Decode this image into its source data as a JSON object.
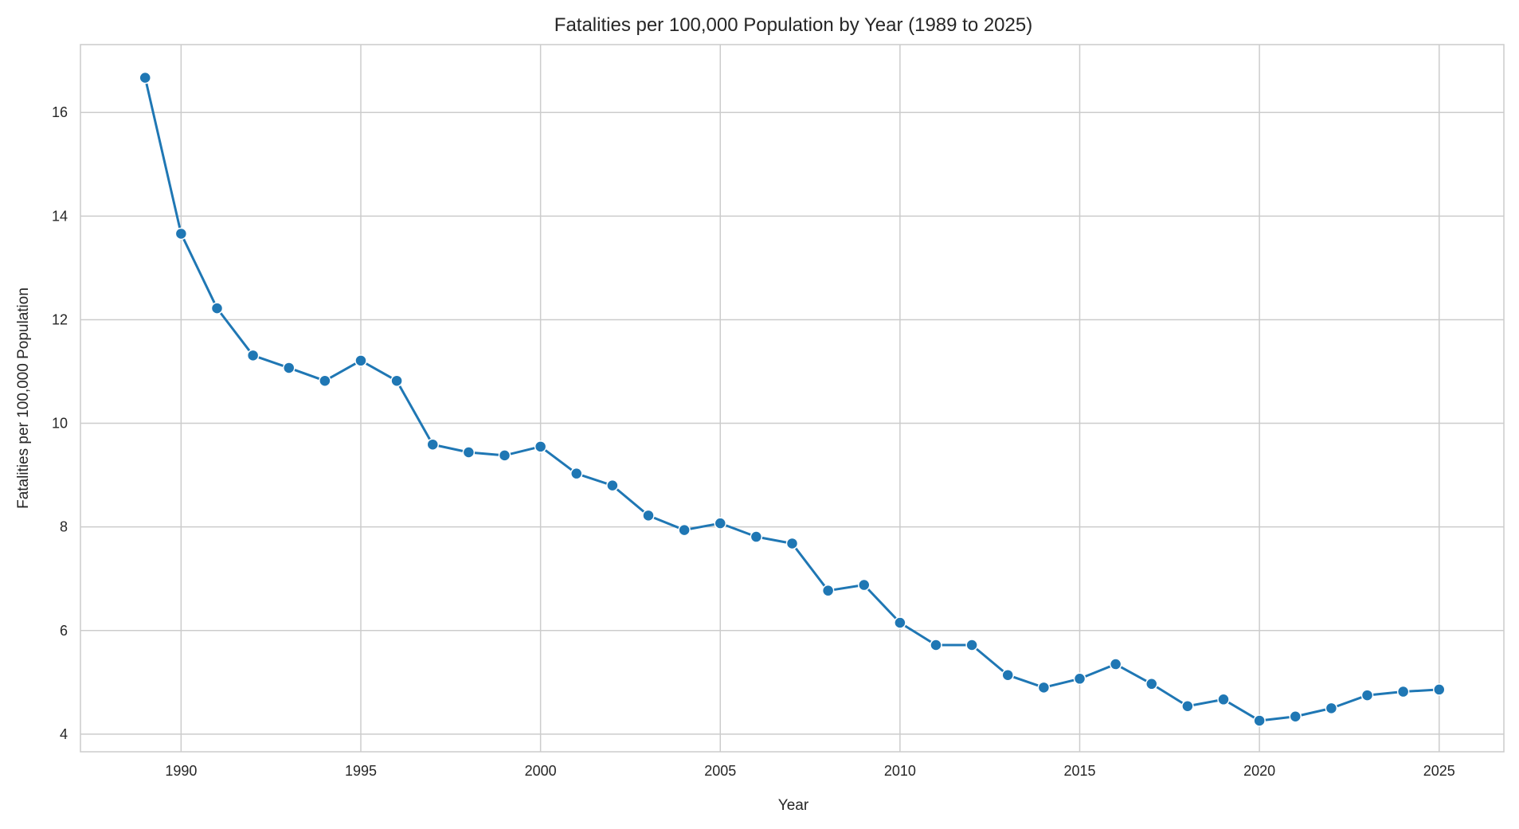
{
  "chart_data": {
    "type": "line",
    "title": "Fatalities per 100,000 Population by Year (1989 to 2025)",
    "xlabel": "Year",
    "ylabel": "Fatalities per 100,000 Population",
    "xlim": [
      1987.2,
      2026.8
    ],
    "ylim": [
      3.66,
      17.31
    ],
    "xticks": [
      1990,
      1995,
      2000,
      2005,
      2010,
      2015,
      2020,
      2025
    ],
    "yticks": [
      4,
      6,
      8,
      10,
      12,
      14,
      16
    ],
    "grid": true,
    "marker": "circle",
    "color": "#1f77b4",
    "x": [
      1989,
      1990,
      1991,
      1992,
      1993,
      1994,
      1995,
      1996,
      1997,
      1998,
      1999,
      2000,
      2001,
      2002,
      2003,
      2004,
      2005,
      2006,
      2007,
      2008,
      2009,
      2010,
      2011,
      2012,
      2013,
      2014,
      2015,
      2016,
      2017,
      2018,
      2019,
      2020,
      2021,
      2022,
      2023,
      2024,
      2025
    ],
    "values": [
      16.67,
      13.66,
      12.22,
      11.31,
      11.07,
      10.82,
      11.21,
      10.82,
      9.59,
      9.44,
      9.38,
      9.55,
      9.03,
      8.8,
      8.22,
      7.94,
      8.07,
      7.81,
      7.68,
      6.77,
      6.88,
      6.15,
      5.72,
      5.72,
      5.14,
      4.9,
      5.07,
      5.35,
      4.97,
      4.54,
      4.67,
      4.26,
      4.34,
      4.5,
      4.75,
      4.82,
      4.86
    ]
  }
}
